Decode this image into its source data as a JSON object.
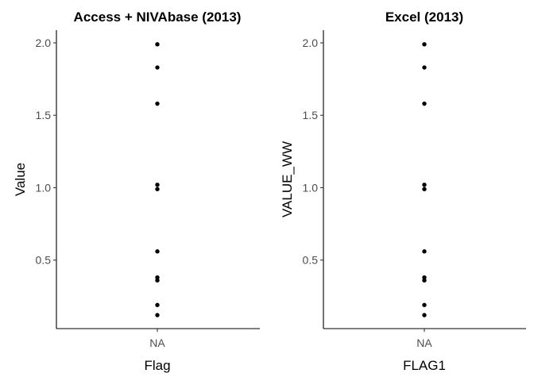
{
  "chart_data": [
    {
      "type": "scatter",
      "title": "Access + NIVAbase (2013)",
      "xlabel": "Flag",
      "ylabel": "Value",
      "categories": [
        "NA"
      ],
      "y_ticks": [
        "0.5",
        "1.0",
        "1.5",
        "2.0"
      ],
      "ylim": [
        0.12,
        2.0
      ],
      "grid": false,
      "series": [
        {
          "x": [
            "NA",
            "NA",
            "NA",
            "NA",
            "NA",
            "NA",
            "NA",
            "NA",
            "NA",
            "NA"
          ],
          "y": [
            1.99,
            1.83,
            1.58,
            1.02,
            0.99,
            0.56,
            0.38,
            0.36,
            0.19,
            0.12
          ]
        }
      ]
    },
    {
      "type": "scatter",
      "title": "Excel (2013)",
      "xlabel": "FLAG1",
      "ylabel": "VALUE_WW",
      "categories": [
        "NA"
      ],
      "y_ticks": [
        "0.5",
        "1.0",
        "1.5",
        "2.0"
      ],
      "ylim": [
        0.12,
        2.0
      ],
      "grid": false,
      "series": [
        {
          "x": [
            "NA",
            "NA",
            "NA",
            "NA",
            "NA",
            "NA",
            "NA",
            "NA",
            "NA",
            "NA"
          ],
          "y": [
            1.99,
            1.83,
            1.58,
            1.02,
            0.99,
            0.56,
            0.38,
            0.36,
            0.19,
            0.12
          ]
        }
      ]
    }
  ]
}
